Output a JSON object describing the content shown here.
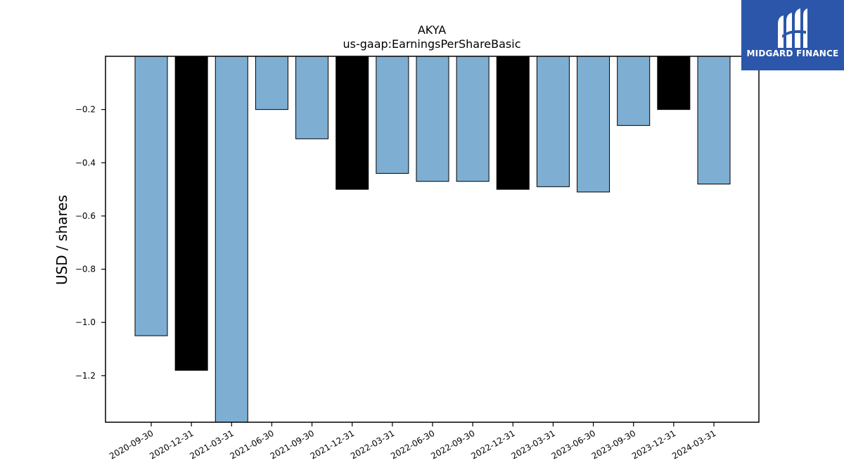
{
  "brand": {
    "name": "MIDGARD FINANCE",
    "color": "#2b56aa"
  },
  "chart_data": {
    "type": "bar",
    "title": "AKYA",
    "subtitle": "us-gaap:EarningsPerShareBasic",
    "ylabel": "USD / shares",
    "xlabel": "",
    "ylim": [
      -1.375,
      0.0
    ],
    "yticks": [
      -0.2,
      -0.4,
      -0.6,
      -0.8,
      -1.0,
      -1.2
    ],
    "ytick_labels": [
      "−0.2",
      "−0.4",
      "−0.6",
      "−0.8",
      "−1.0",
      "−1.2"
    ],
    "grid": false,
    "colors": {
      "quarter": "#7eafd3",
      "year_end": "#000000"
    },
    "categories": [
      "2020-09-30",
      "2020-12-31",
      "2021-03-31",
      "2021-06-30",
      "2021-09-30",
      "2021-12-31",
      "2022-03-31",
      "2022-06-30",
      "2022-09-30",
      "2022-12-31",
      "2023-03-31",
      "2023-06-30",
      "2023-09-30",
      "2023-12-31",
      "2024-03-31"
    ],
    "values": [
      -1.05,
      -1.18,
      -1.4,
      -0.2,
      -0.31,
      -0.5,
      -0.44,
      -0.47,
      -0.47,
      -0.5,
      -0.49,
      -0.51,
      -0.26,
      -0.2,
      -0.48
    ],
    "year_end": [
      false,
      true,
      false,
      false,
      false,
      true,
      false,
      false,
      false,
      true,
      false,
      false,
      false,
      true,
      false
    ]
  }
}
